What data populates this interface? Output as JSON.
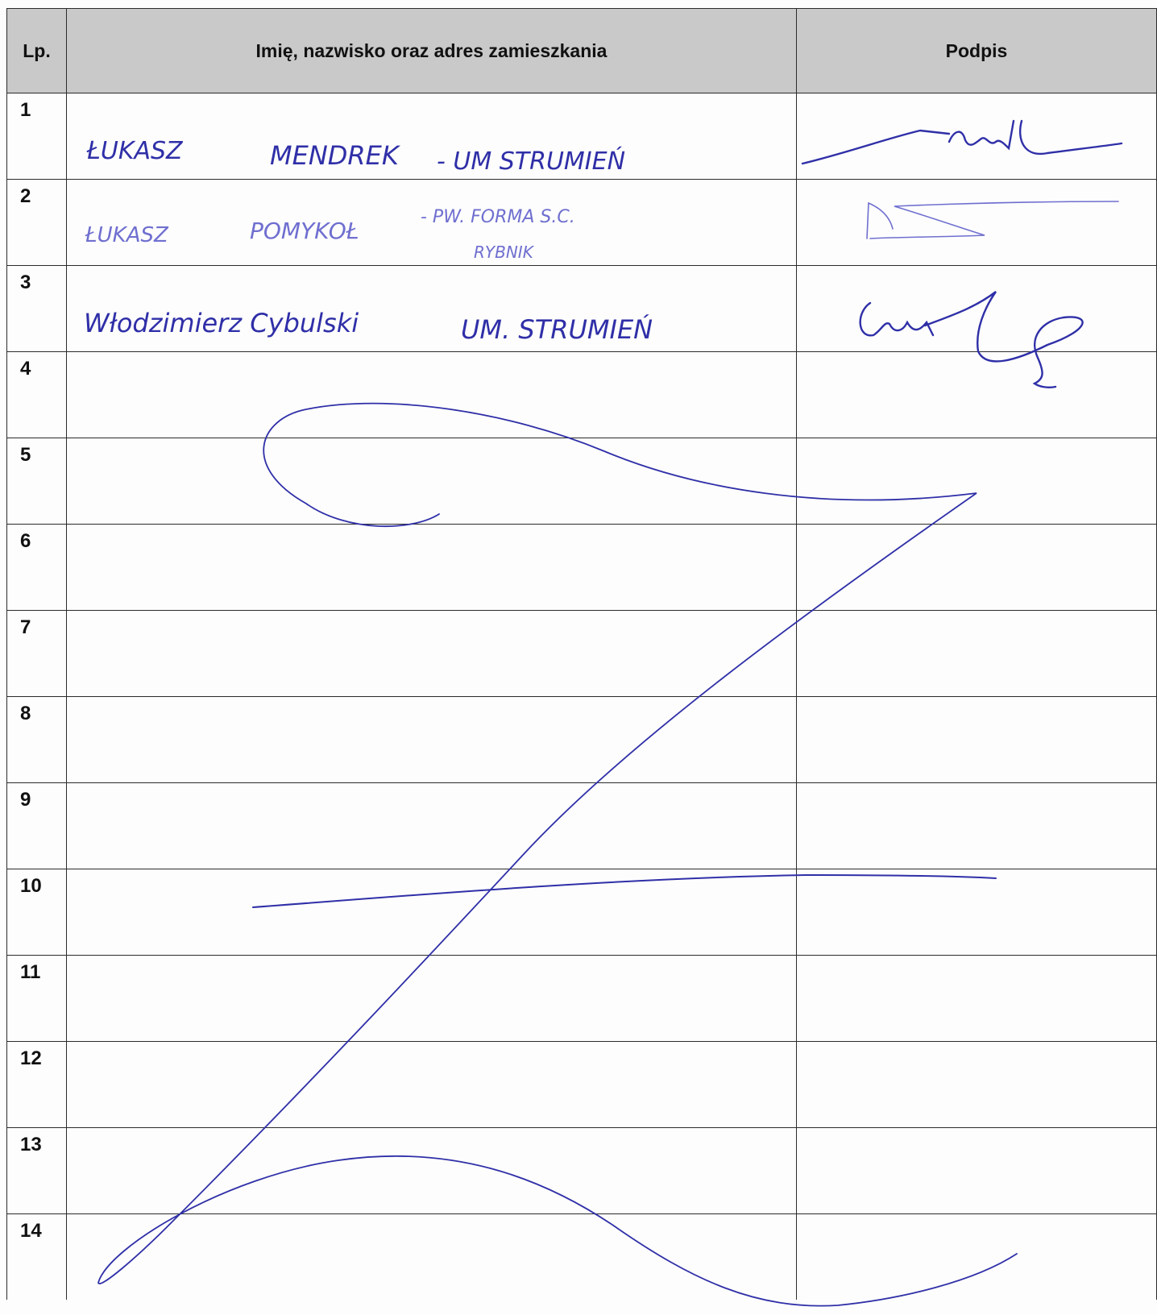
{
  "table": {
    "headers": {
      "lp": "Lp.",
      "name": "Imię, nazwisko oraz adres zamieszkania",
      "signature": "Podpis"
    },
    "rows": [
      {
        "lp": "1",
        "name": "ŁUKASZ MENDREK - UM STRUMIEŃ",
        "signature": "handwritten signature"
      },
      {
        "lp": "2",
        "name": "ŁUKASZ POMYKOŁ - PW. FORMA S.C. RYBNIK",
        "signature": "handwritten signature"
      },
      {
        "lp": "3",
        "name": "Włodzimierz Cybulski UM. STRUMIEŃ",
        "signature": "handwritten signature"
      },
      {
        "lp": "4",
        "name": "",
        "signature": ""
      },
      {
        "lp": "5",
        "name": "",
        "signature": ""
      },
      {
        "lp": "6",
        "name": "",
        "signature": ""
      },
      {
        "lp": "7",
        "name": "",
        "signature": ""
      },
      {
        "lp": "8",
        "name": "",
        "signature": ""
      },
      {
        "lp": "9",
        "name": "",
        "signature": ""
      },
      {
        "lp": "10",
        "name": "",
        "signature": ""
      },
      {
        "lp": "11",
        "name": "",
        "signature": ""
      },
      {
        "lp": "12",
        "name": "",
        "signature": ""
      },
      {
        "lp": "13",
        "name": "",
        "signature": ""
      },
      {
        "lp": "14",
        "name": "",
        "signature": ""
      }
    ]
  },
  "handwriting": {
    "entry_1_name": "ŁUKASZ",
    "entry_1_surname": "MENDREK",
    "entry_1_address": "- UM STRUMIEŃ",
    "entry_2_name": "ŁUKASZ",
    "entry_2_surname": "POMYKOŁ",
    "entry_2_org": "- PW. FORMA S.C.",
    "entry_2_city": "RYBNIK",
    "entry_3_name": "Włodzimierz Cybulski",
    "entry_3_address": "UM. STRUMIEŃ",
    "ink_color": "#2f2fa8",
    "ink_color_faded": "#6f6fd0"
  }
}
